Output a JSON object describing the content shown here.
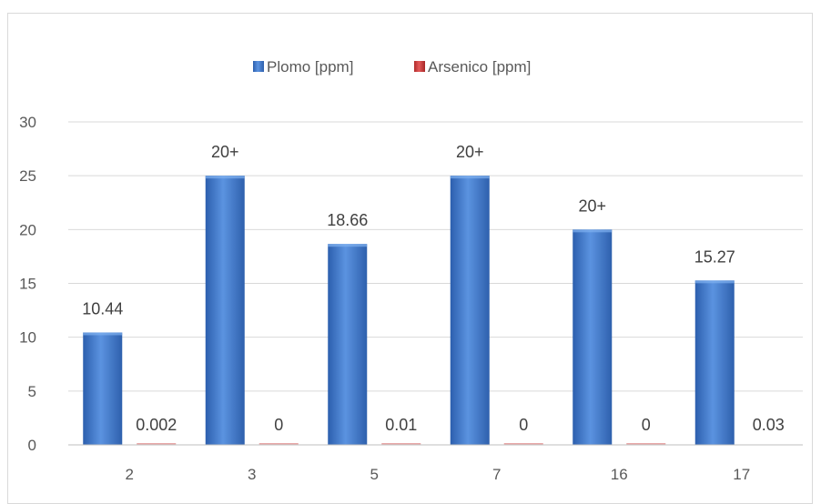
{
  "chart_data": {
    "type": "bar",
    "title": "",
    "xlabel": "",
    "ylabel": "",
    "categories": [
      "2",
      "3",
      "5",
      "7",
      "16",
      "17"
    ],
    "series": [
      {
        "name": "Plomo [ppm]",
        "values": [
          10.44,
          25,
          18.66,
          25,
          20,
          15.27
        ],
        "labels": [
          "10.44",
          "20+",
          "18.66",
          "20+",
          "20+",
          "15.27"
        ],
        "color": "#4a7fd0"
      },
      {
        "name": "Arsenico [ppm]",
        "values": [
          0.002,
          0,
          0.01,
          0,
          0,
          0.03
        ],
        "labels": [
          "0.002",
          "0",
          "0.01",
          "0",
          "0",
          "0.03"
        ],
        "color": "#d03a3a"
      }
    ],
    "ylim": [
      0,
      30
    ],
    "yticks": [
      "0",
      "5",
      "10",
      "15",
      "20",
      "25",
      "30"
    ],
    "grid": true,
    "legend_position": "top-center"
  }
}
